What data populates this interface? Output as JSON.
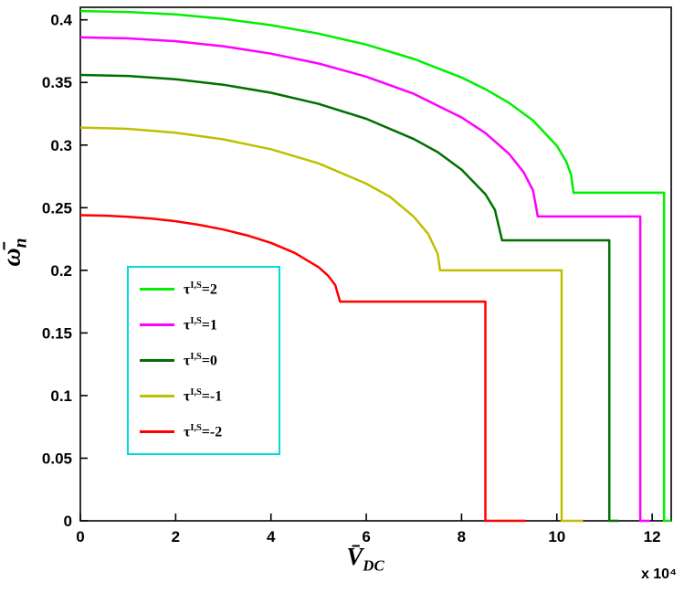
{
  "chart_data": {
    "type": "line",
    "title": "",
    "xlabel": {
      "base": "V̄",
      "sub": "DC"
    },
    "ylabel": {
      "base": "ω̄",
      "sub": "n"
    },
    "x_offset_label": "x 10⁴",
    "x_units_multiplier": 10000,
    "xlim": [
      0,
      12.4
    ],
    "ylim": [
      0,
      0.41
    ],
    "grid": false,
    "legend_position": "left-center",
    "legend_border_color": "#00dcdc",
    "axis_color": "#000000",
    "xticks": [
      0,
      2,
      4,
      6,
      8,
      10,
      12
    ],
    "xtick_labels": [
      "0",
      "2",
      "4",
      "6",
      "8",
      "10",
      "12"
    ],
    "yticks": [
      0,
      0.05,
      0.1,
      0.15,
      0.2,
      0.25,
      0.3,
      0.35,
      0.4
    ],
    "ytick_labels": [
      "0",
      "0.05",
      "0.1",
      "0.15",
      "0.2",
      "0.25",
      "0.3",
      "0.35",
      "0.4"
    ],
    "series": [
      {
        "id": "tau-plus2",
        "label_base": "τ",
        "label_sup": "I,S",
        "label_rest": "=2",
        "color": "#00f000",
        "start_value": 0.407,
        "plateau_value": 0.262,
        "knee_x": 10.35,
        "pull_in_x": 12.25,
        "points": [
          [
            0,
            0.407
          ],
          [
            1,
            0.4063
          ],
          [
            2,
            0.4043
          ],
          [
            3,
            0.4008
          ],
          [
            4,
            0.3958
          ],
          [
            5,
            0.389
          ],
          [
            6,
            0.3802
          ],
          [
            7,
            0.3688
          ],
          [
            8,
            0.354
          ],
          [
            8.5,
            0.3446
          ],
          [
            9,
            0.3336
          ],
          [
            9.5,
            0.3196
          ],
          [
            10,
            0.2994
          ],
          [
            10.2,
            0.2867
          ],
          [
            10.3,
            0.2763
          ],
          [
            10.35,
            0.262
          ],
          [
            12.25,
            0.262
          ],
          [
            12.25,
            0
          ],
          [
            12.4,
            0
          ]
        ]
      },
      {
        "id": "tau-plus1",
        "label_base": "τ",
        "label_sup": "I,S",
        "label_rest": "=1",
        "color": "#ff00ff",
        "start_value": 0.386,
        "plateau_value": 0.243,
        "knee_x": 9.6,
        "pull_in_x": 11.75,
        "points": [
          [
            0,
            0.386
          ],
          [
            1,
            0.3852
          ],
          [
            2,
            0.3829
          ],
          [
            3,
            0.3789
          ],
          [
            4,
            0.373
          ],
          [
            5,
            0.3651
          ],
          [
            6,
            0.3546
          ],
          [
            7,
            0.3409
          ],
          [
            8,
            0.3221
          ],
          [
            8.5,
            0.3096
          ],
          [
            9,
            0.2928
          ],
          [
            9.3,
            0.2785
          ],
          [
            9.5,
            0.2637
          ],
          [
            9.6,
            0.243
          ],
          [
            11.75,
            0.243
          ],
          [
            11.75,
            0
          ],
          [
            11.95,
            0
          ]
        ]
      },
      {
        "id": "tau-0",
        "label_base": "τ",
        "label_sup": "I,S",
        "label_rest": "=0",
        "color": "#007000",
        "start_value": 0.356,
        "plateau_value": 0.224,
        "knee_x": 8.85,
        "pull_in_x": 11.1,
        "points": [
          [
            0,
            0.356
          ],
          [
            1,
            0.3552
          ],
          [
            2,
            0.3526
          ],
          [
            3,
            0.3482
          ],
          [
            4,
            0.3418
          ],
          [
            5,
            0.3329
          ],
          [
            6,
            0.321
          ],
          [
            7,
            0.3048
          ],
          [
            7.5,
            0.2944
          ],
          [
            8,
            0.2804
          ],
          [
            8.5,
            0.2608
          ],
          [
            8.7,
            0.2483
          ],
          [
            8.85,
            0.224
          ],
          [
            11.1,
            0.224
          ],
          [
            11.1,
            0
          ],
          [
            11.3,
            0
          ]
        ]
      },
      {
        "id": "tau-minus1",
        "label_base": "τ",
        "label_sup": "I,S",
        "label_rest": "=-1",
        "color": "#bfbf00",
        "start_value": 0.314,
        "plateau_value": 0.2,
        "knee_x": 7.55,
        "pull_in_x": 10.1,
        "points": [
          [
            0,
            0.314
          ],
          [
            1,
            0.313
          ],
          [
            2,
            0.3099
          ],
          [
            3,
            0.3046
          ],
          [
            4,
            0.2967
          ],
          [
            5,
            0.2854
          ],
          [
            6,
            0.2692
          ],
          [
            6.5,
            0.2586
          ],
          [
            7,
            0.2427
          ],
          [
            7.3,
            0.2291
          ],
          [
            7.5,
            0.2131
          ],
          [
            7.55,
            0.2
          ],
          [
            10.1,
            0.2
          ],
          [
            10.1,
            0
          ],
          [
            10.55,
            0
          ]
        ]
      },
      {
        "id": "tau-minus2",
        "label_base": "τ",
        "label_sup": "I,S",
        "label_rest": "=-2",
        "color": "#ff0000",
        "start_value": 0.244,
        "plateau_value": 0.175,
        "knee_x": 5.45,
        "pull_in_x": 8.5,
        "points": [
          [
            0,
            0.244
          ],
          [
            0.5,
            0.2437
          ],
          [
            1,
            0.2428
          ],
          [
            1.5,
            0.2413
          ],
          [
            2,
            0.2392
          ],
          [
            2.5,
            0.2363
          ],
          [
            3,
            0.2326
          ],
          [
            3.5,
            0.2279
          ],
          [
            4,
            0.2219
          ],
          [
            4.5,
            0.2139
          ],
          [
            5,
            0.2025
          ],
          [
            5.2,
            0.1957
          ],
          [
            5.35,
            0.1882
          ],
          [
            5.45,
            0.175
          ],
          [
            8.5,
            0.175
          ],
          [
            8.5,
            0
          ],
          [
            9.35,
            0
          ]
        ]
      }
    ]
  }
}
